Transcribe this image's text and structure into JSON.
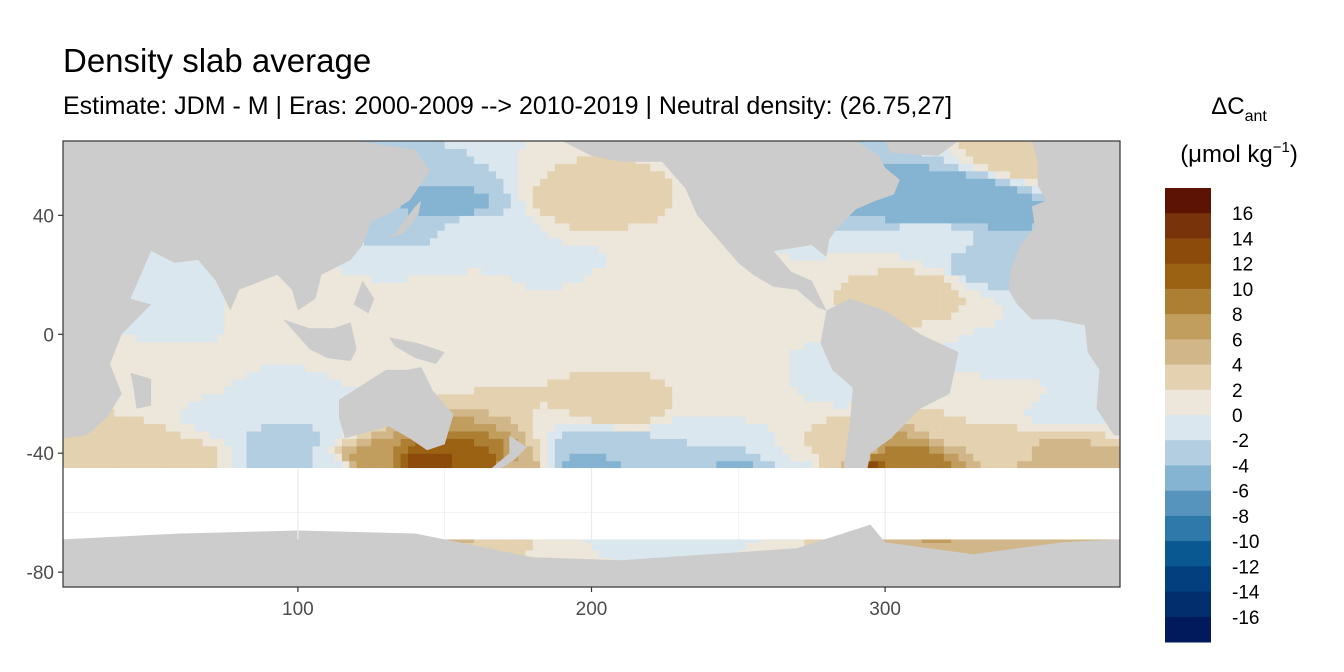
{
  "chart_data": {
    "type": "heatmap",
    "title": "Density slab average",
    "subtitle": "Estimate: JDM - M | Eras: 2000-2009 --> 2010-2019 | Neutral density: (26.75,27]",
    "xlabel": "",
    "ylabel": "",
    "xlim": [
      20,
      380
    ],
    "ylim": [
      -85,
      65
    ],
    "x_ticks": [
      100,
      200,
      300
    ],
    "y_ticks": [
      -80,
      -40,
      0,
      40
    ],
    "grid": true,
    "legend": {
      "position": "right",
      "title": "ΔC",
      "title_subscript": "ant",
      "unit_open": "(μmol kg",
      "unit_sup": "−1",
      "unit_close": ")",
      "levels": [
        16,
        14,
        12,
        10,
        8,
        6,
        4,
        2,
        0,
        -2,
        -4,
        -6,
        -8,
        -10,
        -12,
        -14,
        -16
      ],
      "colors": [
        "#5c1304",
        "#79330a",
        "#8c4b0b",
        "#9b6214",
        "#ad7f32",
        "#c19d5e",
        "#d0b689",
        "#e3d1b0",
        "#ede6da",
        "#dbe7ee",
        "#b3cee0",
        "#85b3d2",
        "#5693bd",
        "#2f78aa",
        "#0a5891",
        "#033f7e",
        "#022e6e",
        "#001a5c"
      ]
    },
    "colors": {
      "land": "#cccccc",
      "no_data": "#ffffff",
      "panel_border": "#333333",
      "grid": "#ebebeb"
    },
    "fields": [
      {
        "x": 170,
        "y": 10,
        "value": 1
      },
      {
        "x": 230,
        "y": 5,
        "value": 1
      },
      {
        "x": 135,
        "y": -10,
        "value": 1
      },
      {
        "x": 250,
        "y": -20,
        "value": 2
      },
      {
        "x": 210,
        "y": -25,
        "value": 3
      },
      {
        "x": 185,
        "y": -12,
        "value": 2
      },
      {
        "x": 105,
        "y": -25,
        "value": -1
      },
      {
        "x": 95,
        "y": -35,
        "value": -3
      },
      {
        "x": 80,
        "y": -28,
        "value": -1
      },
      {
        "x": 85,
        "y": 10,
        "value": 1
      },
      {
        "x": 65,
        "y": 12,
        "value": -2
      },
      {
        "x": 55,
        "y": -15,
        "value": 1
      },
      {
        "x": 160,
        "y": 38,
        "value": -1
      },
      {
        "x": 155,
        "y": 42,
        "value": -5
      },
      {
        "x": 195,
        "y": 45,
        "value": 3
      },
      {
        "x": 190,
        "y": 20,
        "value": -1
      },
      {
        "x": 200,
        "y": 15,
        "value": 2
      },
      {
        "x": 240,
        "y": -35,
        "value": -2
      },
      {
        "x": 205,
        "y": -38,
        "value": -4
      },
      {
        "x": 285,
        "y": -15,
        "value": -1
      },
      {
        "x": 285,
        "y": -40,
        "value": 2
      },
      {
        "x": 310,
        "y": 45,
        "value": -5
      },
      {
        "x": 330,
        "y": 45,
        "value": -6
      },
      {
        "x": 335,
        "y": 25,
        "value": -4
      },
      {
        "x": 350,
        "y": 60,
        "value": 4
      },
      {
        "x": 315,
        "y": 30,
        "value": 0
      },
      {
        "x": 310,
        "y": 15,
        "value": 3
      },
      {
        "x": 340,
        "y": -20,
        "value": 1
      },
      {
        "x": 345,
        "y": -10,
        "value": -1
      },
      {
        "x": 345,
        "y": -40,
        "value": 3
      },
      {
        "x": 355,
        "y": -42,
        "value": 6
      },
      {
        "x": 330,
        "y": -30,
        "value": 2
      },
      {
        "x": 360,
        "y": -25,
        "value": -1
      },
      {
        "x": 40,
        "y": -40,
        "value": 4
      },
      {
        "x": 60,
        "y": -42,
        "value": 3
      },
      {
        "x": 145,
        "y": -44,
        "value": 13
      },
      {
        "x": 160,
        "y": -43,
        "value": 11
      },
      {
        "x": 125,
        "y": -43,
        "value": 7
      },
      {
        "x": 175,
        "y": -46,
        "value": 5
      },
      {
        "x": 195,
        "y": -46,
        "value": -5
      },
      {
        "x": 220,
        "y": -48,
        "value": -4
      },
      {
        "x": 250,
        "y": -49,
        "value": -5
      },
      {
        "x": 270,
        "y": -48,
        "value": -2
      },
      {
        "x": 288,
        "y": -49,
        "value": 4
      },
      {
        "x": 297,
        "y": -47,
        "value": 17
      },
      {
        "x": 305,
        "y": -43,
        "value": 9
      },
      {
        "x": 95,
        "y": -45,
        "value": -3
      },
      {
        "x": 110,
        "y": -46,
        "value": -2
      }
    ]
  }
}
